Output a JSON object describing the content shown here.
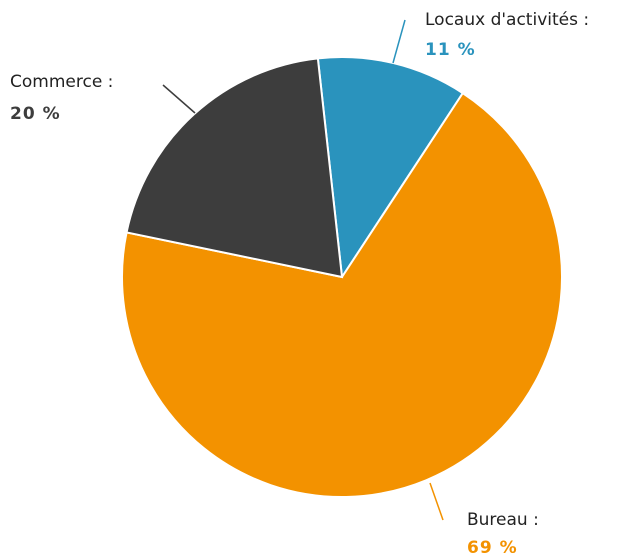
{
  "chart_data": {
    "type": "pie",
    "categories": [
      "Locaux d'activités :",
      "Bureau :",
      "Commerce :"
    ],
    "values": [
      11,
      69,
      20
    ],
    "value_labels": [
      "11 %",
      "69 %",
      "20 %"
    ],
    "colors": [
      "#2a93bd",
      "#f39200",
      "#3d3d3d"
    ]
  }
}
